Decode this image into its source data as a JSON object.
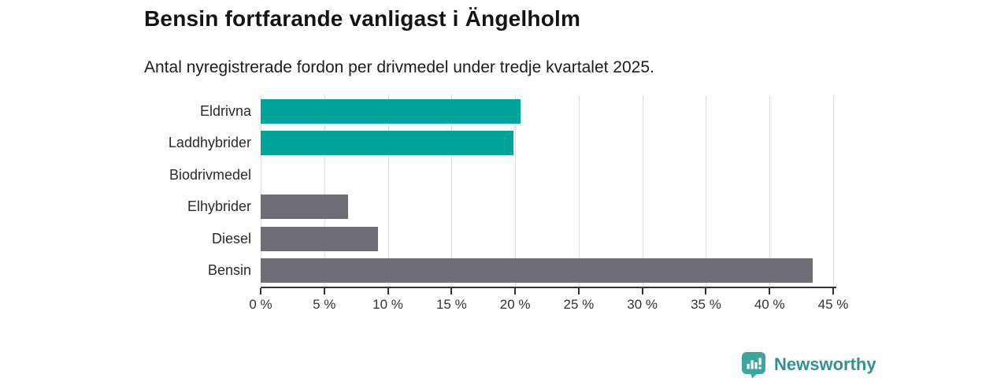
{
  "header": {
    "title": "Bensin fortfarande vanligast i Ängelholm",
    "subtitle": "Antal nyregistrerade fordon per drivmedel under tredje kvartalet 2025."
  },
  "chart_data": {
    "type": "bar",
    "orientation": "horizontal",
    "title": "Bensin fortfarande vanligast i Ängelholm",
    "subtitle": "Antal nyregistrerade fordon per drivmedel under tredje kvartalet 2025.",
    "categories": [
      "Eldrivna",
      "Laddhybrider",
      "Biodrivmedel",
      "Elhybrider",
      "Diesel",
      "Bensin"
    ],
    "values": [
      20.4,
      19.9,
      0,
      6.9,
      9.2,
      43.4
    ],
    "bar_colors": [
      "#00a49a",
      "#00a49a",
      "#00a49a",
      "#6d6d73",
      "#6d6d73",
      "#6d6d73"
    ],
    "xlabel": "",
    "ylabel": "",
    "xlim": [
      0,
      45
    ],
    "xticks": [
      0,
      5,
      10,
      15,
      20,
      25,
      30,
      35,
      40,
      45
    ],
    "xtick_suffix": " %",
    "grid": true,
    "legend": "none"
  },
  "footer": {
    "brand": "Newsworthy"
  },
  "colors": {
    "teal": "#00a49a",
    "gray": "#6d6d73",
    "grid": "#dddddd",
    "axis": "#333333",
    "logo_bubble": "#3da69c",
    "brand_text": "#35918f"
  }
}
